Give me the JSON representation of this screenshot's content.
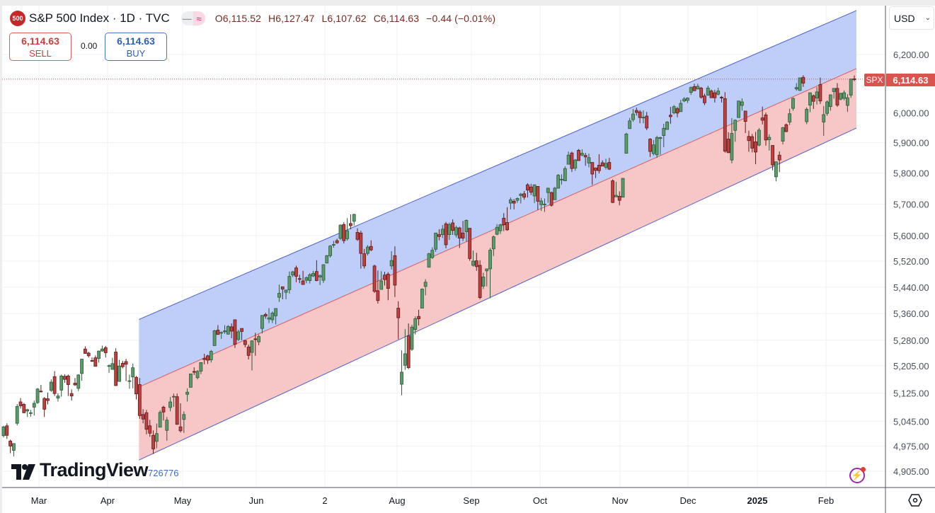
{
  "header": {
    "logo_text": "500",
    "title": "S&P 500 Index · 1D · TVC",
    "ohlc": {
      "open": "O6,115.52",
      "high": "H6,127.47",
      "low": "L6,107.62",
      "close": "C6,114.63",
      "change": "−0.44 (−0.01%)"
    },
    "pill_icons": [
      "minus-icon",
      "wave-icon"
    ]
  },
  "trade": {
    "sell_price": "6,114.63",
    "sell_label": "SELL",
    "spread": "0.00",
    "buy_price": "6,114.63",
    "buy_label": "BUY"
  },
  "currency": "USD",
  "last_price": {
    "symbol": "SPX",
    "value": "6,114.63"
  },
  "watermark": {
    "brand": "TradingView",
    "suffix": "726776"
  },
  "colors": {
    "bull": "#5b9b6b",
    "bear": "#c04040",
    "channel_upper_fill": "#bccbf8",
    "channel_lower_fill": "#f7c4c4",
    "channel_edge": "#4a5fcf",
    "channel_mid": "#e05a5a",
    "last_price": "#d9534f"
  },
  "chart_data": {
    "type": "candlestick",
    "title": "S&P 500 Index · 1D · TVC",
    "y_scale": "log",
    "grid": true,
    "y_ticks": [
      "6,200.00",
      "6,000.00",
      "5,900.00",
      "5,800.00",
      "5,700.00",
      "5,600.00",
      "5,520.00",
      "5,440.00",
      "5,360.00",
      "5,280.00",
      "5,205.00",
      "5,125.00",
      "5,045.00",
      "4,975.00",
      "4,905.00"
    ],
    "x_ticks": [
      "Mar",
      "Apr",
      "May",
      "Jun",
      "2",
      "Aug",
      "Sep",
      "Oct",
      "Nov",
      "Dec",
      "2025",
      "Feb"
    ],
    "regression_channel": {
      "start_date": "2024-04-15",
      "end_date": "2025-02-14",
      "upper": [
        5342,
        6355
      ],
      "middle": [
        5143,
        6151
      ],
      "lower": [
        4936,
        5949
      ]
    },
    "candles_ohlc": [
      [
        5004,
        5032,
        4999,
        5029
      ],
      [
        5032,
        5039,
        4995,
        5005
      ],
      [
        4989,
        4993,
        4955,
        4975
      ],
      [
        4963,
        4983,
        4946,
        4982
      ],
      [
        5039,
        5094,
        5033,
        5087
      ],
      [
        5100,
        5111,
        5081,
        5089
      ],
      [
        5093,
        5097,
        5068,
        5069
      ],
      [
        5074,
        5080,
        5057,
        5078
      ],
      [
        5068,
        5077,
        5058,
        5069
      ],
      [
        5085,
        5104,
        5061,
        5096
      ],
      [
        5098,
        5140,
        5094,
        5137
      ],
      [
        5131,
        5149,
        5127,
        5130
      ],
      [
        5110,
        5114,
        5057,
        5079
      ],
      [
        5109,
        5127,
        5093,
        5104
      ],
      [
        5133,
        5165,
        5129,
        5157
      ],
      [
        5173,
        5189,
        5117,
        5124
      ],
      [
        5111,
        5125,
        5101,
        5117
      ],
      [
        5134,
        5179,
        5115,
        5175
      ],
      [
        5174,
        5180,
        5155,
        5165
      ],
      [
        5175,
        5179,
        5117,
        5150
      ],
      [
        5124,
        5136,
        5104,
        5117
      ],
      [
        5154,
        5169,
        5146,
        5149
      ],
      [
        5139,
        5180,
        5131,
        5178
      ],
      [
        5182,
        5225,
        5161,
        5224
      ],
      [
        5254,
        5262,
        5240,
        5241
      ],
      [
        5242,
        5246,
        5229,
        5234
      ],
      [
        5220,
        5229,
        5216,
        5218
      ],
      [
        5228,
        5235,
        5203,
        5203
      ],
      [
        5226,
        5249,
        5214,
        5248
      ],
      [
        5248,
        5264,
        5246,
        5254
      ],
      [
        5258,
        5263,
        5229,
        5243
      ],
      [
        5204,
        5209,
        5184,
        5205
      ],
      [
        5194,
        5228,
        5194,
        5211
      ],
      [
        5245,
        5256,
        5146,
        5147
      ],
      [
        5159,
        5222,
        5158,
        5204
      ],
      [
        5212,
        5219,
        5197,
        5202
      ],
      [
        5217,
        5225,
        5160,
        5209
      ],
      [
        5159,
        5179,
        5138,
        5161
      ],
      [
        5172,
        5211,
        5139,
        5199
      ],
      [
        5171,
        5175,
        5107,
        5123
      ],
      [
        5150,
        5169,
        5052,
        5061
      ],
      [
        5064,
        5079,
        5039,
        5051
      ],
      [
        5069,
        5077,
        5008,
        5022
      ],
      [
        5032,
        5049,
        5001,
        5011
      ],
      [
        5005,
        5019,
        4953,
        4967
      ],
      [
        4988,
        5038,
        4969,
        5010
      ],
      [
        5028,
        5076,
        5028,
        5070
      ],
      [
        5085,
        5089,
        5047,
        5071
      ],
      [
        5019,
        5057,
        4990,
        5048
      ],
      [
        5084,
        5114,
        5073,
        5100
      ],
      [
        5114,
        5124,
        5086,
        5116
      ],
      [
        5115,
        5124,
        5035,
        5036
      ],
      [
        5029,
        5096,
        5013,
        5018
      ],
      [
        5050,
        5073,
        5012,
        5064
      ],
      [
        5122,
        5139,
        5101,
        5128
      ],
      [
        5142,
        5181,
        5142,
        5181
      ],
      [
        5188,
        5200,
        5178,
        5187
      ],
      [
        5170,
        5192,
        5165,
        5188
      ],
      [
        5189,
        5215,
        5180,
        5214
      ],
      [
        5226,
        5240,
        5209,
        5223
      ],
      [
        5234,
        5237,
        5210,
        5221
      ],
      [
        5222,
        5251,
        5214,
        5247
      ],
      [
        5264,
        5311,
        5264,
        5308
      ],
      [
        5310,
        5325,
        5297,
        5297
      ],
      [
        5303,
        5306,
        5284,
        5303
      ],
      [
        5305,
        5325,
        5299,
        5308
      ],
      [
        5298,
        5325,
        5297,
        5321
      ],
      [
        5320,
        5330,
        5286,
        5307
      ],
      [
        5341,
        5342,
        5257,
        5268
      ],
      [
        5282,
        5311,
        5278,
        5305
      ],
      [
        5315,
        5315,
        5280,
        5306
      ],
      [
        5279,
        5280,
        5259,
        5267
      ],
      [
        5260,
        5267,
        5223,
        5235
      ],
      [
        5244,
        5280,
        5191,
        5278
      ],
      [
        5284,
        5302,
        5234,
        5283
      ],
      [
        5275,
        5297,
        5265,
        5291
      ],
      [
        5315,
        5355,
        5300,
        5354
      ],
      [
        5357,
        5362,
        5344,
        5352
      ],
      [
        5343,
        5376,
        5331,
        5347
      ],
      [
        5341,
        5366,
        5331,
        5361
      ],
      [
        5353,
        5375,
        5327,
        5375
      ],
      [
        5409,
        5448,
        5395,
        5421
      ],
      [
        5441,
        5442,
        5403,
        5434
      ],
      [
        5424,
        5432,
        5403,
        5431
      ],
      [
        5432,
        5488,
        5420,
        5473
      ],
      [
        5477,
        5490,
        5471,
        5487
      ],
      [
        5499,
        5506,
        5455,
        5473
      ],
      [
        5466,
        5478,
        5452,
        5464
      ],
      [
        5459,
        5490,
        5447,
        5448
      ],
      [
        5461,
        5473,
        5452,
        5469
      ],
      [
        5460,
        5483,
        5451,
        5478
      ],
      [
        5474,
        5490,
        5471,
        5482
      ],
      [
        5488,
        5523,
        5458,
        5460
      ],
      [
        5471,
        5479,
        5446,
        5475
      ],
      [
        5461,
        5510,
        5453,
        5509
      ],
      [
        5514,
        5539,
        5513,
        5537
      ],
      [
        5537,
        5570,
        5531,
        5567
      ],
      [
        5572,
        5583,
        5562,
        5572
      ],
      [
        5584,
        5590,
        5574,
        5577
      ],
      [
        5591,
        5635,
        5586,
        5633
      ],
      [
        5635,
        5642,
        5575,
        5584
      ],
      [
        5590,
        5655,
        5584,
        5615
      ],
      [
        5638,
        5667,
        5620,
        5631
      ],
      [
        5645,
        5669,
        5631,
        5667
      ],
      [
        5610,
        5623,
        5583,
        5588
      ],
      [
        5608,
        5615,
        5497,
        5544
      ],
      [
        5543,
        5558,
        5497,
        5505
      ],
      [
        5544,
        5570,
        5538,
        5564
      ],
      [
        5566,
        5585,
        5551,
        5555
      ],
      [
        5505,
        5509,
        5422,
        5427
      ],
      [
        5429,
        5491,
        5390,
        5399
      ],
      [
        5433,
        5489,
        5433,
        5459
      ],
      [
        5477,
        5487,
        5445,
        5463
      ],
      [
        5480,
        5486,
        5400,
        5436
      ],
      [
        5505,
        5551,
        5494,
        5522
      ],
      [
        5537,
        5566,
        5410,
        5446
      ],
      [
        5376,
        5397,
        5283,
        5347
      ],
      [
        5151,
        5250,
        5119,
        5186
      ],
      [
        5206,
        5313,
        5193,
        5240
      ],
      [
        5293,
        5330,
        5195,
        5199
      ],
      [
        5253,
        5326,
        5248,
        5319
      ],
      [
        5312,
        5351,
        5297,
        5344
      ],
      [
        5351,
        5371,
        5324,
        5344
      ],
      [
        5376,
        5436,
        5376,
        5434
      ],
      [
        5442,
        5464,
        5415,
        5455
      ],
      [
        5501,
        5546,
        5501,
        5543
      ],
      [
        5531,
        5563,
        5527,
        5554
      ],
      [
        5557,
        5608,
        5549,
        5608
      ],
      [
        5603,
        5620,
        5585,
        5597
      ],
      [
        5603,
        5633,
        5592,
        5620
      ],
      [
        5637,
        5643,
        5560,
        5571
      ],
      [
        5603,
        5641,
        5586,
        5635
      ],
      [
        5640,
        5651,
        5602,
        5616
      ],
      [
        5602,
        5631,
        5594,
        5625
      ],
      [
        5624,
        5628,
        5561,
        5592
      ],
      [
        5608,
        5646,
        5583,
        5592
      ],
      [
        5612,
        5651,
        5581,
        5648
      ],
      [
        5623,
        5623,
        5521,
        5528
      ],
      [
        5507,
        5553,
        5503,
        5520
      ],
      [
        5521,
        5546,
        5490,
        5503
      ],
      [
        5507,
        5523,
        5403,
        5408
      ],
      [
        5443,
        5484,
        5434,
        5471
      ],
      [
        5490,
        5497,
        5442,
        5496
      ],
      [
        5496,
        5561,
        5406,
        5554
      ],
      [
        5558,
        5600,
        5536,
        5596
      ],
      [
        5604,
        5636,
        5601,
        5626
      ],
      [
        5615,
        5637,
        5605,
        5634
      ],
      [
        5655,
        5671,
        5614,
        5634
      ],
      [
        5641,
        5690,
        5615,
        5618
      ],
      [
        5703,
        5721,
        5683,
        5714
      ],
      [
        5709,
        5716,
        5683,
        5703
      ],
      [
        5712,
        5721,
        5704,
        5718
      ],
      [
        5727,
        5736,
        5702,
        5732
      ],
      [
        5733,
        5742,
        5714,
        5722
      ],
      [
        5762,
        5767,
        5721,
        5745
      ],
      [
        5755,
        5765,
        5729,
        5738
      ],
      [
        5726,
        5763,
        5703,
        5762
      ],
      [
        5757,
        5757,
        5681,
        5709
      ],
      [
        5698,
        5720,
        5678,
        5710
      ],
      [
        5698,
        5718,
        5675,
        5700
      ],
      [
        5737,
        5753,
        5704,
        5751
      ],
      [
        5737,
        5740,
        5692,
        5696
      ],
      [
        5714,
        5756,
        5714,
        5751
      ],
      [
        5751,
        5797,
        5751,
        5793
      ],
      [
        5778,
        5796,
        5763,
        5780
      ],
      [
        5775,
        5822,
        5775,
        5815
      ],
      [
        5829,
        5871,
        5829,
        5859
      ],
      [
        5866,
        5870,
        5804,
        5815
      ],
      [
        5816,
        5846,
        5808,
        5843
      ],
      [
        5875,
        5879,
        5840,
        5841
      ],
      [
        5859,
        5878,
        5855,
        5865
      ],
      [
        5858,
        5866,
        5824,
        5853
      ],
      [
        5833,
        5864,
        5819,
        5851
      ],
      [
        5835,
        5835,
        5762,
        5797
      ],
      [
        5817,
        5817,
        5784,
        5809
      ],
      [
        5826,
        5862,
        5799,
        5808
      ],
      [
        5834,
        5842,
        5823,
        5823
      ],
      [
        5819,
        5847,
        5812,
        5832
      ],
      [
        5835,
        5850,
        5810,
        5813
      ],
      [
        5775,
        5780,
        5703,
        5705
      ],
      [
        5723,
        5772,
        5723,
        5728
      ],
      [
        5725,
        5741,
        5696,
        5712
      ],
      [
        5722,
        5783,
        5722,
        5783
      ],
      [
        5865,
        5933,
        5864,
        5929
      ],
      [
        5947,
        5983,
        5947,
        5973
      ],
      [
        5977,
        6013,
        5970,
        5996
      ],
      [
        6008,
        6018,
        5991,
        6001
      ],
      [
        6003,
        6009,
        5965,
        5984
      ],
      [
        5985,
        6008,
        5965,
        5985
      ],
      [
        5989,
        6003,
        5942,
        5949
      ],
      [
        5912,
        5915,
        5853,
        5871
      ],
      [
        5864,
        5909,
        5858,
        5893
      ],
      [
        5860,
        5923,
        5850,
        5917
      ],
      [
        5914,
        5920,
        5860,
        5917
      ],
      [
        5924,
        5963,
        5885,
        5948
      ],
      [
        5944,
        5972,
        5944,
        5969
      ],
      [
        5992,
        6020,
        5963,
        5987
      ],
      [
        6000,
        6026,
        5995,
        6021
      ],
      [
        6014,
        6020,
        5985,
        5999
      ],
      [
        6004,
        6044,
        6003,
        6032
      ],
      [
        6040,
        6053,
        6036,
        6047
      ],
      [
        6042,
        6052,
        6033,
        6050
      ],
      [
        6069,
        6089,
        6061,
        6086
      ],
      [
        6089,
        6099,
        6075,
        6075
      ],
      [
        6081,
        6099,
        6079,
        6090
      ],
      [
        6084,
        6088,
        6048,
        6053
      ],
      [
        6057,
        6065,
        6026,
        6034
      ],
      [
        6060,
        6092,
        6058,
        6084
      ],
      [
        6074,
        6079,
        6051,
        6051
      ],
      [
        6068,
        6078,
        6035,
        6051
      ],
      [
        6063,
        6085,
        6059,
        6074
      ],
      [
        6053,
        6057,
        6035,
        6050
      ],
      [
        6048,
        6070,
        5867,
        5872
      ],
      [
        5912,
        5935,
        5866,
        5867
      ],
      [
        5843,
        5982,
        5832,
        5931
      ],
      [
        5941,
        5978,
        5903,
        5975
      ],
      [
        5984,
        6041,
        5983,
        6040
      ],
      [
        6025,
        6049,
        6007,
        6037
      ],
      [
        6006,
        6006,
        5932,
        5971
      ],
      [
        5921,
        5940,
        5870,
        5907
      ],
      [
        5920,
        5929,
        5868,
        5882
      ],
      [
        5903,
        5936,
        5829,
        5869
      ],
      [
        5892,
        5949,
        5888,
        5942
      ],
      [
        5983,
        6021,
        5961,
        5975
      ],
      [
        5993,
        6001,
        5890,
        5909
      ],
      [
        5910,
        5928,
        5874,
        5918
      ],
      [
        5891,
        5891,
        5809,
        5827
      ],
      [
        5788,
        5838,
        5773,
        5837
      ],
      [
        5859,
        5871,
        5803,
        5843
      ],
      [
        5905,
        5953,
        5894,
        5950
      ],
      [
        5960,
        5964,
        5935,
        5937
      ],
      [
        5969,
        6014,
        5959,
        5997
      ],
      [
        6015,
        6052,
        6007,
        6049
      ],
      [
        6081,
        6101,
        6075,
        6086
      ],
      [
        6076,
        6119,
        6074,
        6119
      ],
      [
        6121,
        6128,
        6088,
        6101
      ],
      [
        5970,
        6018,
        5962,
        6012
      ],
      [
        6026,
        6069,
        6002,
        6068
      ],
      [
        6058,
        6062,
        6013,
        6039
      ],
      [
        6050,
        6087,
        6028,
        6071
      ],
      [
        6096,
        6120,
        6030,
        6040
      ],
      [
        5969,
        6023,
        5923,
        5994
      ],
      [
        5998,
        6042,
        5990,
        6037
      ],
      [
        6021,
        6062,
        6007,
        6061
      ],
      [
        6072,
        6084,
        6048,
        6083
      ],
      [
        6083,
        6101,
        6020,
        6026
      ],
      [
        6046,
        6068,
        6042,
        6066
      ],
      [
        6049,
        6076,
        6042,
        6068
      ],
      [
        6025,
        6063,
        6003,
        6051
      ],
      [
        6060,
        6116,
        6051,
        6115
      ],
      [
        6115.52,
        6127.47,
        6107.62,
        6114.63
      ]
    ]
  }
}
